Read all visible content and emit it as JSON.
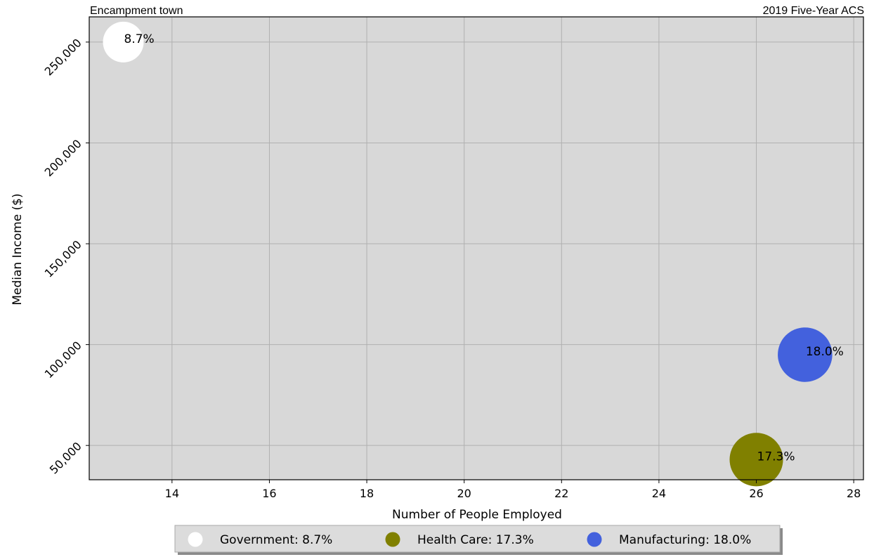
{
  "chart_data": {
    "type": "scatter",
    "title_left": "Encampment town",
    "title_right": "2019 Five-Year ACS",
    "xlabel": "Number of People Employed",
    "ylabel": "Median Income ($)",
    "xlim": [
      12.3,
      28.2
    ],
    "ylim": [
      33000,
      262500
    ],
    "xticks": [
      14,
      16,
      18,
      20,
      22,
      24,
      26,
      28
    ],
    "yticks": [
      50000,
      100000,
      150000,
      200000,
      250000
    ],
    "ytick_labels": [
      "50,000",
      "100,000",
      "150,000",
      "200,000",
      "250,000"
    ],
    "grid": true,
    "plot_background": "#d8d8d8",
    "legend_placement": "bottom-center",
    "series": [
      {
        "name": "Government",
        "x": 13,
        "y": 250000,
        "share_pct": 8.7,
        "label": "8.7%",
        "legend": "Government: 8.7%",
        "color": "#ffffff"
      },
      {
        "name": "Health Care",
        "x": 26,
        "y": 43000,
        "share_pct": 17.3,
        "label": "17.3%",
        "legend": "Health Care: 17.3%",
        "color": "#808000"
      },
      {
        "name": "Manufacturing",
        "x": 27,
        "y": 95000,
        "share_pct": 18.0,
        "label": "18.0%",
        "legend": "Manufacturing: 18.0%",
        "color": "#4361dd"
      }
    ]
  }
}
